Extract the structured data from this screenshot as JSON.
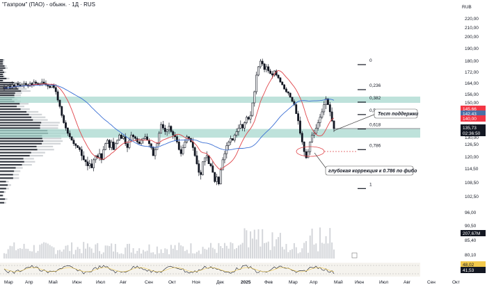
{
  "header": {
    "title": "\"Газпром\" (ПАО) - обыкн. · 1Д · RUS",
    "currency": "RUB"
  },
  "price_axis": {
    "labels": [
      "220,00",
      "210,00",
      "200,00",
      "190,00",
      "180,00",
      "172,00",
      "164,00",
      "156,00",
      "150,00",
      "144,00",
      "135,73",
      "130,00",
      "126,50",
      "120,00",
      "114,50",
      "108,50",
      "102,50",
      "96,00",
      "90,50",
      "85,40",
      "80,10"
    ]
  },
  "price_tags": {
    "tag1": {
      "text": "145,66",
      "color": "#f23645"
    },
    "tag2": {
      "text": "142,43",
      "color": "#4a6fa5"
    },
    "tag3": {
      "text": "140,00",
      "color": "#f23645"
    },
    "last_price": {
      "text": "135,73",
      "color": "#131722"
    },
    "countdown": {
      "text": "02:36:50",
      "color": "#131722"
    },
    "volume": {
      "text": "207,67M",
      "color": "#131722"
    },
    "osc1": {
      "text": "48,02",
      "color": "#f2c94c"
    },
    "osc2": {
      "text": "41,53",
      "color": "#131722"
    }
  },
  "fib_levels": [
    {
      "label": "0",
      "price": 177.5
    },
    {
      "label": "0,236",
      "price": 159.5
    },
    {
      "label": "0,382",
      "price": 150.5
    },
    {
      "label": "0,5",
      "price": 143.5
    },
    {
      "label": "0,618",
      "price": 135.5
    },
    {
      "label": "0,786",
      "price": 124.0
    },
    {
      "label": "1",
      "price": 106.0
    }
  ],
  "zones": [
    {
      "name": "resistance-zone",
      "top": 154.5,
      "bottom": 150.0
    },
    {
      "name": "support-zone",
      "top": 135.5,
      "bottom": 130.5
    }
  ],
  "annotations": {
    "support_test": "Тест поддержки",
    "deep_correction": "глубокая коррекция к 0.786 по фибо"
  },
  "x_axis": {
    "labels": [
      "Мар",
      "Апр",
      "Май",
      "Июн",
      "Июл",
      "Авг",
      "Сен",
      "Окт",
      "Ноя",
      "Дек",
      "2025",
      "Фев",
      "Мар",
      "Апр",
      "Май",
      "Июн",
      "Июл",
      "Авг",
      "Сен",
      "Окт"
    ]
  },
  "colors": {
    "zone": "#a8d8cf",
    "ma_red": "#e0454a",
    "ma_blue": "#3b6fd4",
    "candle": "#131722",
    "osc_yellow": "#f2c94c"
  },
  "chart_data": {
    "type": "candlestick",
    "timeframe": "1D",
    "ylim": [
      80,
      225
    ],
    "closes": [
      161,
      160,
      162,
      161,
      163,
      162,
      164,
      163,
      162,
      163,
      164,
      163,
      162,
      164,
      163,
      165,
      164,
      163,
      164,
      165,
      164,
      163,
      162,
      161,
      163,
      161,
      158,
      152,
      148,
      143,
      139,
      136,
      133,
      131,
      129,
      127,
      126,
      125,
      124,
      121,
      119,
      118,
      116,
      117,
      115,
      119,
      121,
      120,
      122,
      119,
      124,
      127,
      129,
      125,
      128,
      124,
      127,
      129,
      132,
      130,
      131,
      127,
      125,
      129,
      132,
      131,
      130,
      128,
      127,
      129,
      130,
      131,
      129,
      127,
      125,
      121,
      124,
      127,
      133,
      138,
      136,
      134,
      135,
      137,
      134,
      132,
      131,
      128,
      124,
      122,
      125,
      128,
      131,
      130,
      128,
      125,
      121,
      117,
      113,
      112,
      118,
      120,
      121,
      117,
      116,
      113,
      109,
      111,
      108,
      114,
      119,
      122,
      126,
      128,
      130,
      129,
      132,
      134,
      136,
      138,
      136,
      139,
      142,
      141,
      143,
      150,
      158,
      170,
      176,
      180,
      178,
      174,
      176,
      173,
      171,
      170,
      173,
      170,
      168,
      165,
      163,
      160,
      158,
      157,
      154,
      151,
      149,
      144,
      140,
      133,
      128,
      123,
      120,
      123,
      128,
      132,
      133,
      136,
      139,
      142,
      145,
      149,
      153,
      149,
      145,
      140,
      135.73
    ],
    "series": [
      {
        "name": "MA red"
      },
      {
        "name": "MA blue"
      }
    ]
  }
}
